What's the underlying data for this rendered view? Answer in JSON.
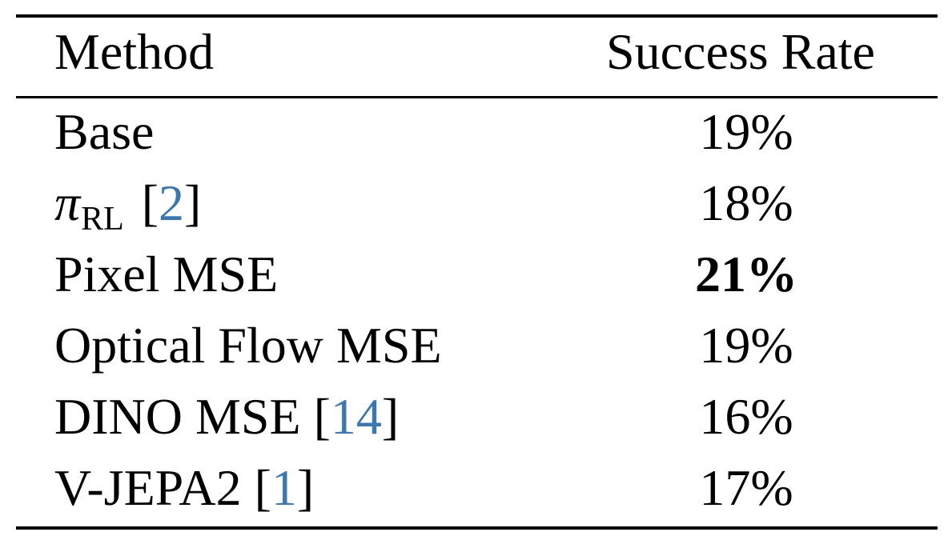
{
  "colors": {
    "text": "#000000",
    "citation_link": "#3a77b5"
  },
  "table": {
    "header": {
      "method": "Method",
      "success_rate": "Success Rate"
    },
    "rows": [
      {
        "method": "Base",
        "citation": "",
        "success_rate": "19%",
        "best": false
      },
      {
        "method_symbol": "π",
        "method_subscript": "RL",
        "citation": "2",
        "success_rate": "18%",
        "best": false
      },
      {
        "method": "Pixel MSE",
        "citation": "",
        "success_rate": "21%",
        "best": true
      },
      {
        "method": "Optical Flow MSE",
        "citation": "",
        "success_rate": "19%",
        "best": false
      },
      {
        "method": "DINO MSE",
        "citation": "14",
        "success_rate": "16%",
        "best": false
      },
      {
        "method": "V-JEPA2",
        "citation": "1",
        "success_rate": "17%",
        "best": false
      }
    ]
  }
}
